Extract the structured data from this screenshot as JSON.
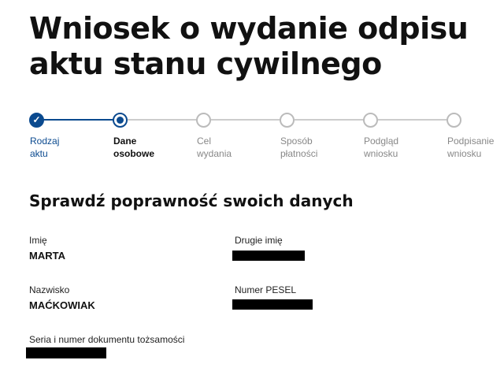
{
  "title": "Wniosek o wydanie odpisu aktu stanu cywilnego",
  "title_lines": [
    "Wniosek o wydanie odpisu",
    "aktu stanu cywilnego"
  ],
  "stepper": {
    "accent": "#0b4a8f",
    "steps": [
      {
        "line1": "Rodzaj",
        "line2": "aktu",
        "state": "done",
        "icon": "check-icon"
      },
      {
        "line1": "Dane",
        "line2": "osobowe",
        "state": "current"
      },
      {
        "line1": "Cel",
        "line2": "wydania",
        "state": "pending"
      },
      {
        "line1": "Sposób",
        "line2": "płatności",
        "state": "pending"
      },
      {
        "line1": "Podgląd",
        "line2": "wniosku",
        "state": "pending"
      },
      {
        "line1": "Podpisanie",
        "line2": "wniosku",
        "state": "pending"
      }
    ]
  },
  "section": {
    "heading": "Sprawdź poprawność swoich danych",
    "fields": {
      "first_name": {
        "label": "Imię",
        "value": "MARTA"
      },
      "second_name": {
        "label": "Drugie imię",
        "redacted": true
      },
      "surname": {
        "label": "Nazwisko",
        "value": "MAĆKOWIAK"
      },
      "pesel": {
        "label": "Numer PESEL",
        "redacted": true
      },
      "id_document": {
        "label": "Seria i numer dokumentu tożsamości",
        "redacted": true
      }
    }
  }
}
